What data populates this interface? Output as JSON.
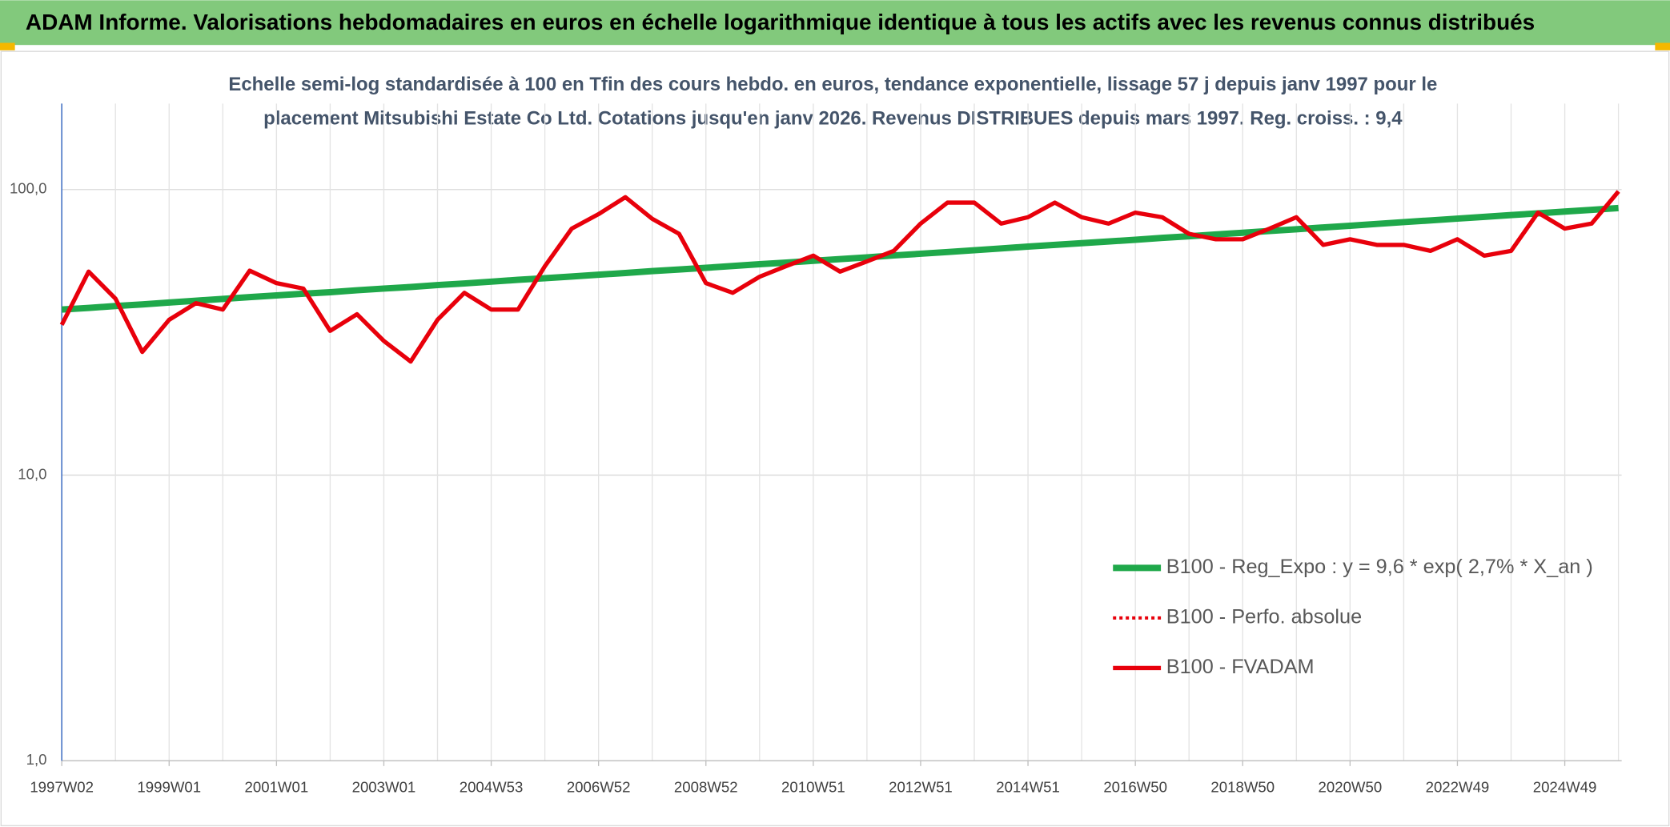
{
  "chart_data": {
    "type": "line",
    "title": "ADAM Informe. Valorisations hebdomadaires en euros en échelle logarithmique identique à tous les actifs avec les revenus connus distribués",
    "subtitle": [
      "Echelle semi-log standardisée à 100 en Tfin des cours hebdo. en euros, tendance exponentielle, lissage 57 j depuis janv 1997 pour le",
      "placement Mitsubishi Estate Co Ltd. Cotations jusqu'en janv 2026. Revenus DISTRIBUES depuis mars 1997. Reg. croiss. : 9,4"
    ],
    "log_scale": true,
    "grid": true,
    "legend": "right",
    "ylim": [
      1,
      200
    ],
    "yticks": [
      {
        "value": 1,
        "label": "1,0"
      },
      {
        "value": 10,
        "label": "10,0"
      },
      {
        "value": 100,
        "label": "100,0"
      }
    ],
    "categories": [
      "1997W02",
      null,
      null,
      null,
      "1999W01",
      null,
      null,
      null,
      "2001W01",
      null,
      null,
      null,
      "2003W01",
      null,
      null,
      null,
      "2004W53",
      null,
      null,
      null,
      "2006W52",
      null,
      null,
      null,
      "2008W52",
      null,
      null,
      null,
      "2010W51",
      null,
      null,
      null,
      "2012W51",
      null,
      null,
      null,
      "2014W51",
      null,
      null,
      null,
      "2016W50",
      null,
      null,
      null,
      "2018W50",
      null,
      null,
      null,
      "2020W50",
      null,
      null,
      null,
      "2022W49",
      null,
      null,
      null,
      "2024W49",
      null,
      null
    ],
    "series": [
      {
        "name": "B100 - Reg_Expo : y = 9,6 * exp( 2,7% *  X_an )",
        "color": "#1fa84a",
        "style": "solid",
        "width": 6,
        "values": [
          38.0,
          38.5,
          39.1,
          39.6,
          40.2,
          40.8,
          41.4,
          42.0,
          42.6,
          43.2,
          43.7,
          44.4,
          45.0,
          45.6,
          46.3,
          46.9,
          47.6,
          48.3,
          48.9,
          49.6,
          50.3,
          51.0,
          51.8,
          52.5,
          53.2,
          54.0,
          54.8,
          55.5,
          56.3,
          57.1,
          57.9,
          58.8,
          59.6,
          60.4,
          61.3,
          62.2,
          63.1,
          64.0,
          64.9,
          65.8,
          66.7,
          67.7,
          68.6,
          69.6,
          70.6,
          71.6,
          72.6,
          73.7,
          74.7,
          75.8,
          76.9,
          78.0,
          79.1,
          80.2,
          81.4,
          82.5,
          83.7,
          84.9,
          86.1
        ]
      },
      {
        "name": "B100 - Perfo. absolue",
        "color": "#e8000b",
        "style": "dotted",
        "width": 3,
        "values": [
          33.6,
          51.6,
          41.5,
          27,
          35,
          40,
          38,
          52,
          47,
          45,
          32,
          36.6,
          29.5,
          25,
          35,
          43.5,
          38,
          38,
          53.9,
          73,
          82,
          94,
          79,
          70,
          47,
          43.5,
          49.5,
          54,
          58.7,
          51.6,
          56,
          61,
          76,
          90,
          90,
          76,
          80,
          90,
          80,
          76,
          83,
          80,
          70,
          67,
          67,
          73,
          80,
          64,
          67,
          64,
          64,
          61,
          67,
          58.7,
          61,
          83,
          73,
          76,
          98.5
        ]
      },
      {
        "name": "B100 - FVADAM",
        "color": "#e8000b",
        "style": "solid",
        "width": 4,
        "values": [
          33.6,
          51.6,
          41.5,
          27,
          35,
          40,
          38,
          52,
          47,
          45,
          32,
          36.6,
          29.5,
          25,
          35,
          43.5,
          38,
          38,
          53.9,
          73,
          82,
          94,
          79,
          70,
          47,
          43.5,
          49.5,
          54,
          58.7,
          51.6,
          56,
          61,
          76,
          90,
          90,
          76,
          80,
          90,
          80,
          76,
          83,
          80,
          70,
          67,
          67,
          73,
          80,
          64,
          67,
          64,
          64,
          61,
          67,
          58.7,
          61,
          83,
          73,
          76,
          98.5
        ]
      }
    ]
  }
}
